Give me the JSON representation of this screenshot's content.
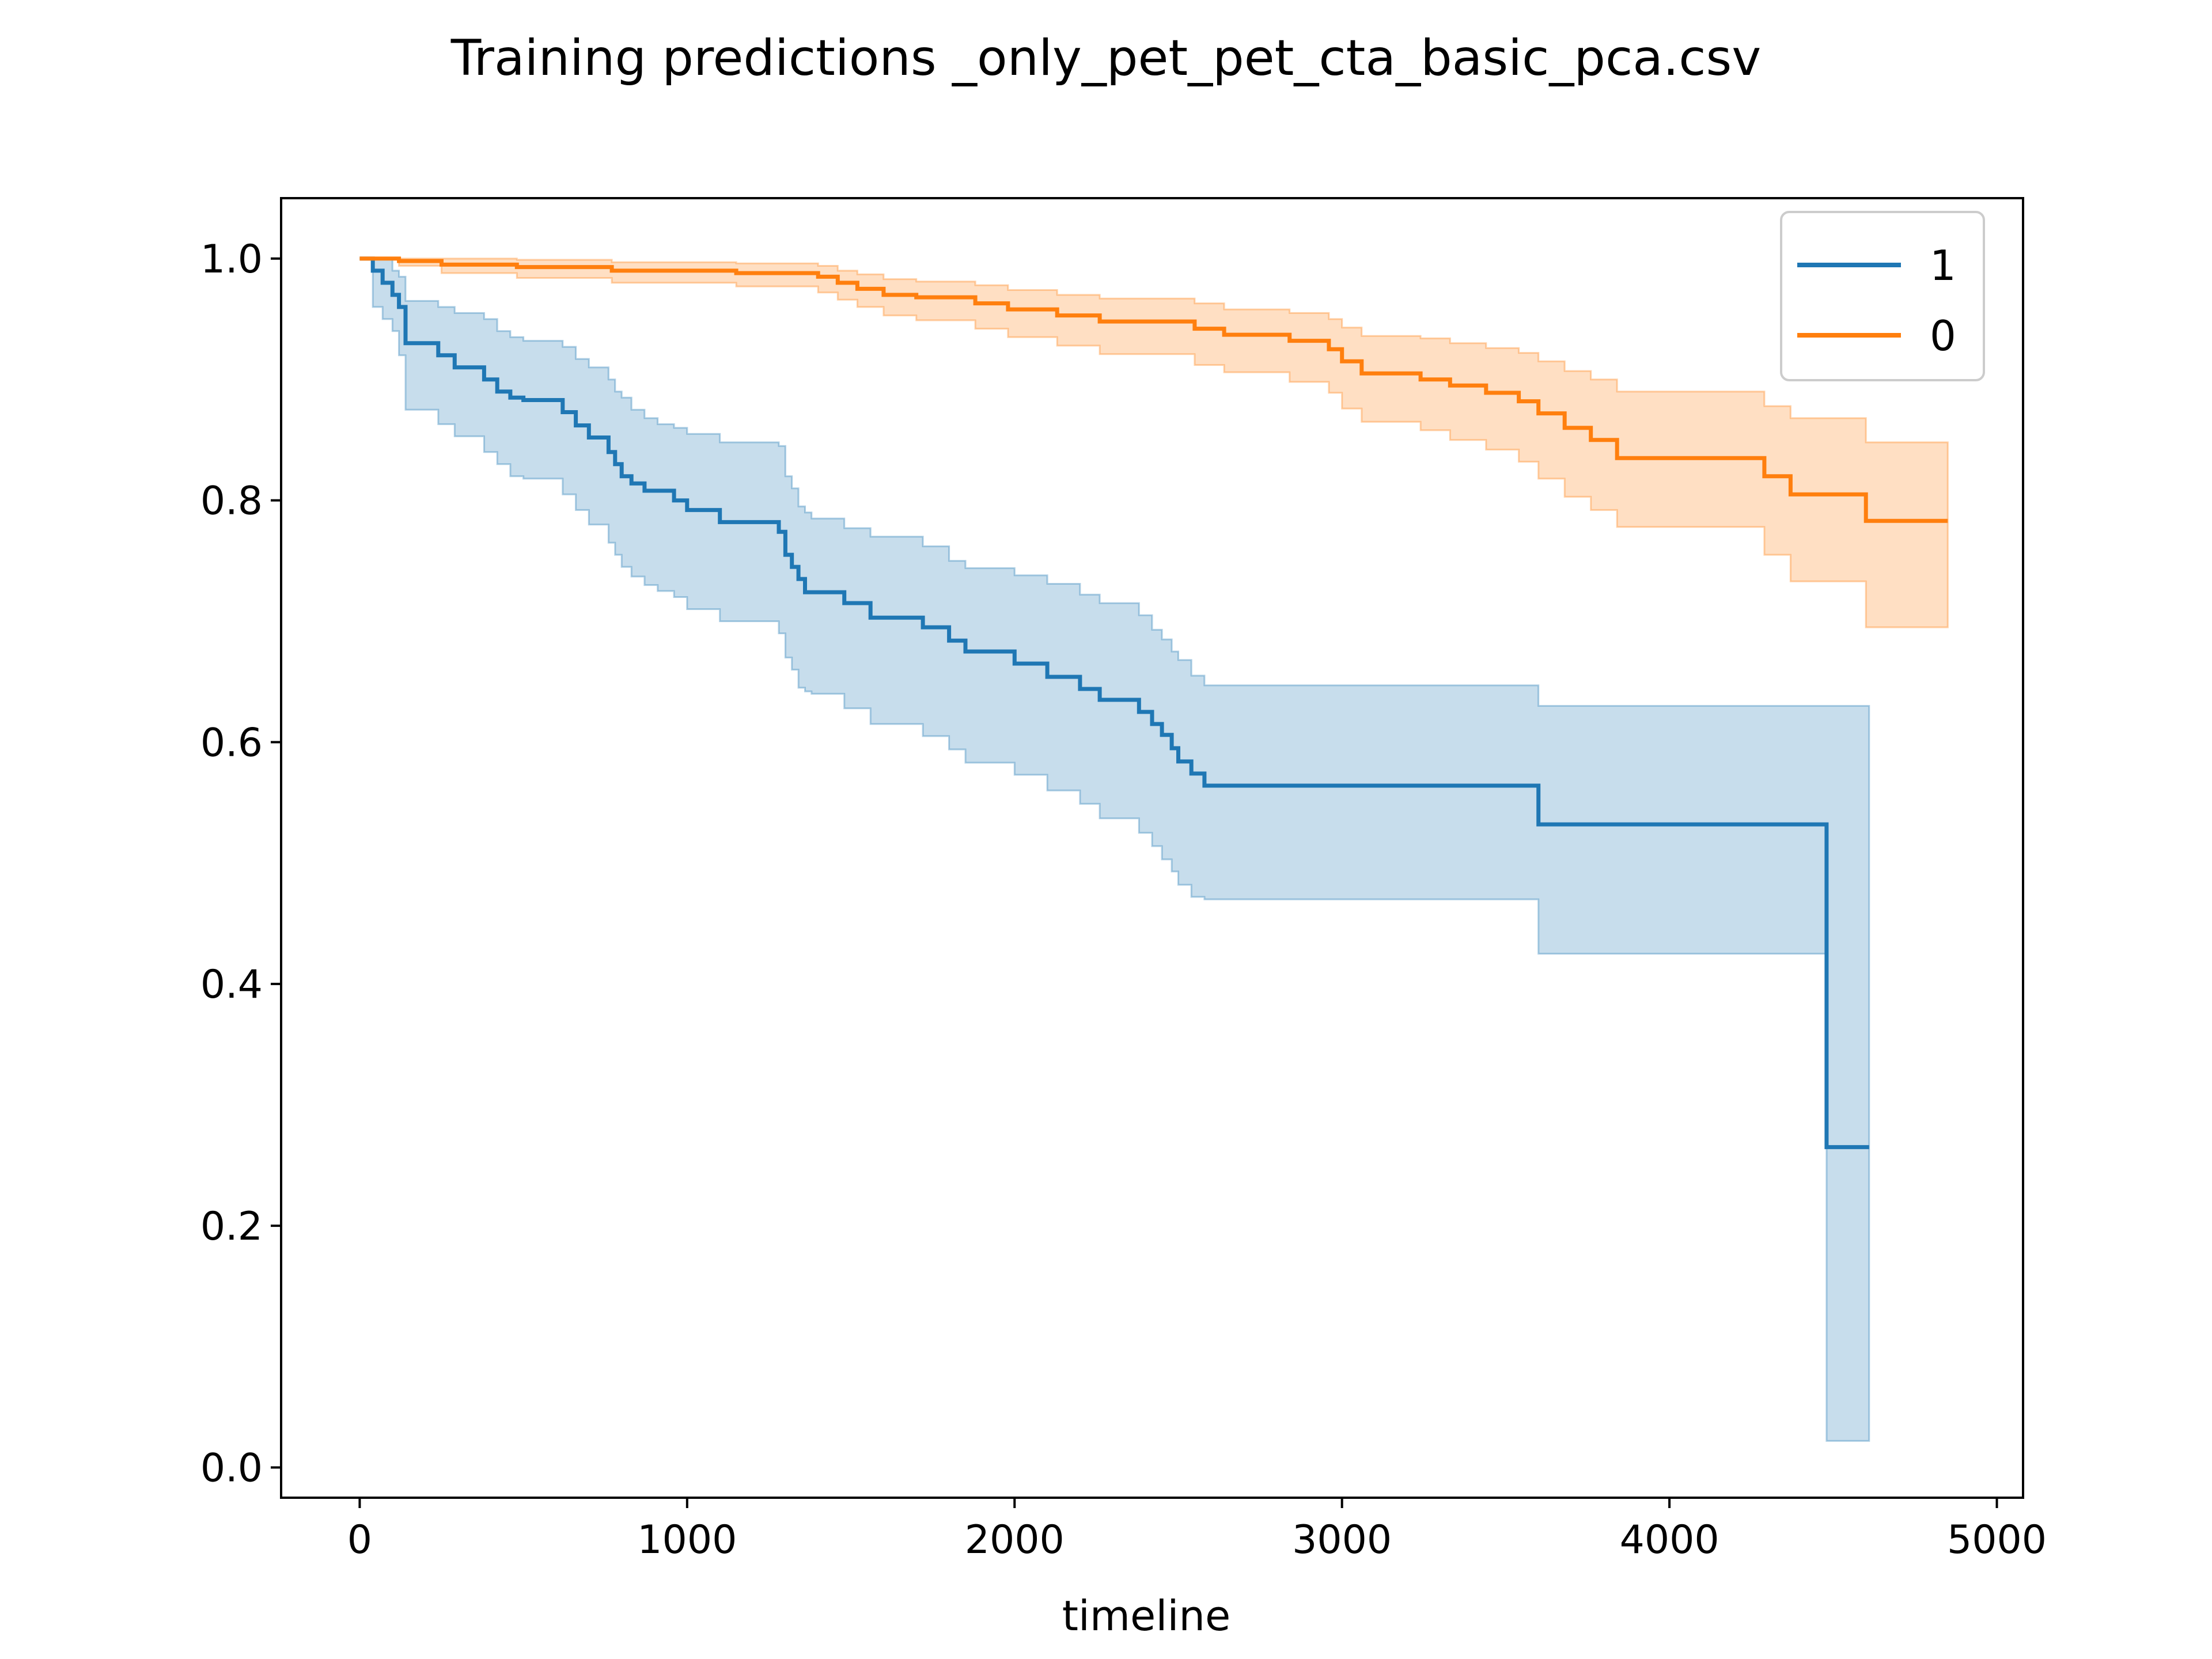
{
  "chart_data": {
    "type": "line",
    "title": "Training predictions _only_pet_pet_cta_basic_pca.csv",
    "xlabel": "timeline",
    "ylabel": "",
    "xlim": [
      -240,
      5080
    ],
    "ylim": [
      -0.025,
      1.05
    ],
    "xticks": [
      0,
      1000,
      2000,
      3000,
      4000,
      5000
    ],
    "xtick_labels": [
      "0",
      "1000",
      "2000",
      "3000",
      "4000",
      "5000"
    ],
    "yticks": [
      0.0,
      0.2,
      0.4,
      0.6,
      0.8,
      1.0
    ],
    "ytick_labels": [
      "0.0",
      "0.2",
      "0.4",
      "0.6",
      "0.8",
      "1.0"
    ],
    "grid": false,
    "legend_position": "top-right",
    "colors": {
      "series_1": "#1f77b4",
      "series_0": "#ff7f0e"
    },
    "series": [
      {
        "name": "1",
        "color": "#1f77b4",
        "step": "post",
        "x": [
          0,
          40,
          70,
          100,
          120,
          140,
          240,
          290,
          380,
          420,
          460,
          500,
          620,
          660,
          700,
          760,
          780,
          800,
          830,
          870,
          910,
          960,
          1000,
          1100,
          1130,
          1280,
          1300,
          1320,
          1340,
          1360,
          1380,
          1480,
          1560,
          1720,
          1800,
          1850,
          2000,
          2100,
          2200,
          2260,
          2380,
          2420,
          2450,
          2480,
          2500,
          2540,
          2580,
          3600,
          4480,
          4610
        ],
        "y": [
          1.0,
          0.99,
          0.98,
          0.97,
          0.96,
          0.93,
          0.92,
          0.91,
          0.9,
          0.89,
          0.885,
          0.883,
          0.873,
          0.862,
          0.852,
          0.84,
          0.83,
          0.82,
          0.814,
          0.808,
          0.808,
          0.8,
          0.792,
          0.782,
          0.782,
          0.774,
          0.755,
          0.745,
          0.735,
          0.724,
          0.724,
          0.715,
          0.703,
          0.695,
          0.684,
          0.675,
          0.665,
          0.654,
          0.644,
          0.635,
          0.625,
          0.615,
          0.606,
          0.595,
          0.584,
          0.574,
          0.564,
          0.532,
          0.265,
          0.265
        ],
        "ci_lower": [
          1.0,
          0.96,
          0.95,
          0.94,
          0.92,
          0.875,
          0.863,
          0.853,
          0.84,
          0.83,
          0.82,
          0.818,
          0.805,
          0.792,
          0.78,
          0.765,
          0.755,
          0.745,
          0.737,
          0.73,
          0.725,
          0.72,
          0.71,
          0.7,
          0.7,
          0.69,
          0.67,
          0.66,
          0.645,
          0.642,
          0.64,
          0.628,
          0.615,
          0.605,
          0.594,
          0.583,
          0.573,
          0.56,
          0.549,
          0.537,
          0.525,
          0.514,
          0.503,
          0.493,
          0.482,
          0.472,
          0.47,
          0.425,
          0.022,
          0.022
        ],
        "ci_upper": [
          1.0,
          1.0,
          1.0,
          0.99,
          0.985,
          0.965,
          0.96,
          0.955,
          0.95,
          0.94,
          0.935,
          0.932,
          0.927,
          0.917,
          0.91,
          0.9,
          0.89,
          0.885,
          0.875,
          0.868,
          0.863,
          0.86,
          0.855,
          0.848,
          0.848,
          0.845,
          0.82,
          0.81,
          0.795,
          0.79,
          0.785,
          0.777,
          0.77,
          0.762,
          0.75,
          0.744,
          0.738,
          0.731,
          0.722,
          0.715,
          0.705,
          0.693,
          0.685,
          0.675,
          0.668,
          0.655,
          0.647,
          0.63,
          0.63,
          0.63
        ]
      },
      {
        "name": "0",
        "color": "#ff7f0e",
        "step": "post",
        "x": [
          0,
          120,
          250,
          480,
          770,
          1150,
          1400,
          1460,
          1520,
          1600,
          1700,
          1880,
          1980,
          2130,
          2260,
          2550,
          2640,
          2840,
          2960,
          3000,
          3060,
          3240,
          3330,
          3440,
          3540,
          3600,
          3680,
          3760,
          3840,
          4290,
          4370,
          4600,
          4850
        ],
        "y": [
          1.0,
          0.998,
          0.995,
          0.993,
          0.99,
          0.988,
          0.985,
          0.98,
          0.975,
          0.97,
          0.968,
          0.963,
          0.958,
          0.953,
          0.948,
          0.942,
          0.937,
          0.932,
          0.925,
          0.915,
          0.905,
          0.9,
          0.895,
          0.889,
          0.882,
          0.872,
          0.86,
          0.85,
          0.835,
          0.82,
          0.805,
          0.783,
          0.783
        ],
        "ci_lower": [
          1.0,
          0.994,
          0.988,
          0.984,
          0.98,
          0.977,
          0.972,
          0.966,
          0.96,
          0.953,
          0.949,
          0.942,
          0.935,
          0.928,
          0.921,
          0.912,
          0.906,
          0.898,
          0.889,
          0.876,
          0.865,
          0.858,
          0.85,
          0.842,
          0.832,
          0.818,
          0.803,
          0.792,
          0.778,
          0.755,
          0.733,
          0.695,
          0.695
        ],
        "ci_upper": [
          1.0,
          1.0,
          1.0,
          0.999,
          0.997,
          0.996,
          0.994,
          0.99,
          0.987,
          0.983,
          0.981,
          0.978,
          0.974,
          0.97,
          0.967,
          0.963,
          0.958,
          0.955,
          0.95,
          0.943,
          0.936,
          0.934,
          0.93,
          0.926,
          0.922,
          0.915,
          0.907,
          0.9,
          0.89,
          0.878,
          0.868,
          0.848,
          0.848
        ]
      }
    ]
  }
}
